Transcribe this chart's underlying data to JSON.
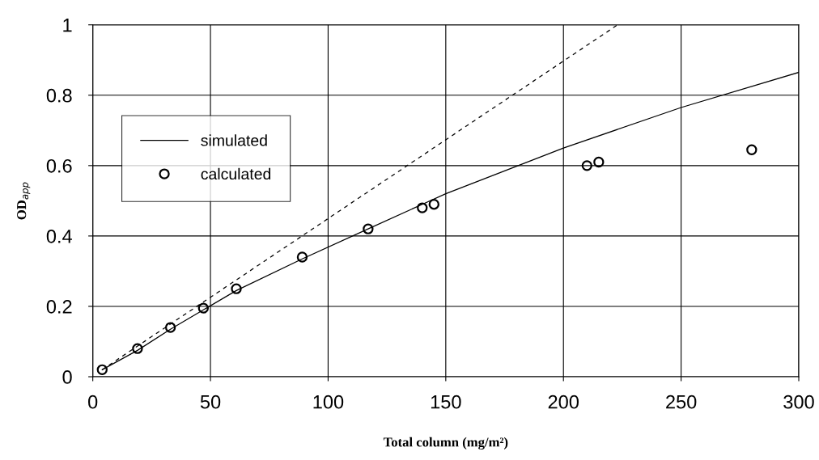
{
  "chart_data": {
    "type": "line",
    "xlabel": "Total column (mg/m²)",
    "ylabel": "OD$_{app}$",
    "xlim": [
      0,
      300
    ],
    "xticks": [
      0,
      50,
      100,
      150,
      200,
      250,
      300
    ],
    "ylim": [
      0,
      1
    ],
    "yticks": [
      0,
      0.2,
      0.4,
      0.6,
      0.8,
      1
    ],
    "grid": true,
    "legend": "left",
    "series": [
      {
        "name": "simulated",
        "color": "#000000",
        "line_style": "solid",
        "marker": "none",
        "x": [
          4,
          19,
          33,
          47,
          61,
          89,
          117,
          140,
          150,
          200,
          250,
          300
        ],
        "values": [
          0.02,
          0.075,
          0.135,
          0.19,
          0.245,
          0.335,
          0.42,
          0.49,
          0.52,
          0.65,
          0.765,
          0.865
        ]
      },
      {
        "name": "calculated",
        "type": "scatter",
        "color": "#000000",
        "marker": "circle",
        "x": [
          4,
          19,
          33,
          47,
          61,
          89,
          117,
          140,
          145,
          210,
          215,
          280
        ],
        "values": [
          0.02,
          0.08,
          0.14,
          0.195,
          0.25,
          0.34,
          0.42,
          0.48,
          0.49,
          0.6,
          0.61,
          0.645
        ]
      },
      {
        "color": "#000000",
        "line_style": "dashed",
        "marker": "none",
        "x": [
          4,
          223
        ],
        "values": [
          0.02,
          1.0
        ]
      }
    ]
  }
}
